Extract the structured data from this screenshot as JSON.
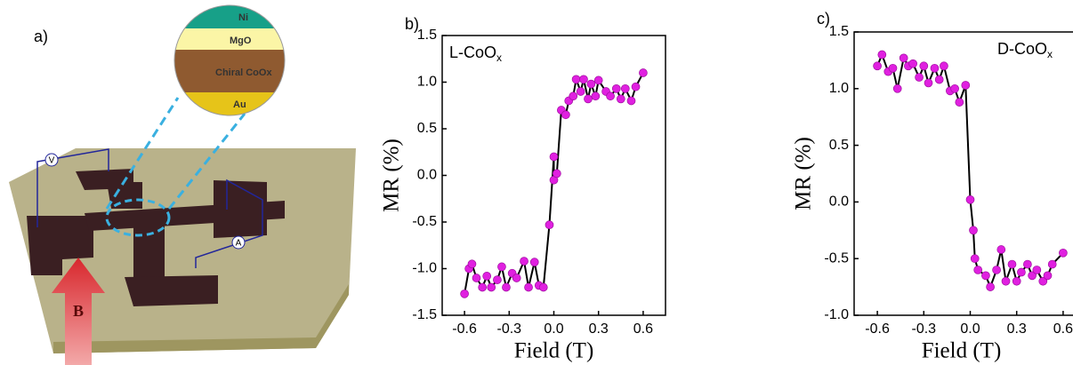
{
  "panel_a": {
    "label": "a)",
    "layers": [
      "Ni",
      "MgO",
      "Chiral CoOx",
      "Au"
    ],
    "voltmeter": "V",
    "ammeter": "A",
    "field": "B"
  },
  "chart_data": [
    {
      "type": "line",
      "panel_label": "b)",
      "annotation": "L-CoO",
      "annotation_sub": "x",
      "x_label": "Field (T)",
      "y_label": "MR (%)",
      "xlim": [
        -0.75,
        0.75
      ],
      "xticks": [
        -0.6,
        -0.3,
        {
          "value": 0,
          "label": "0.0"
        },
        0.3,
        0.6
      ],
      "ylim": [
        -1.5,
        1.5
      ],
      "yticks": [
        -1.5,
        {
          "value": -1,
          "label": "-1.0"
        },
        -0.5,
        {
          "value": 0,
          "label": "0.0"
        },
        0.5,
        {
          "value": 1,
          "label": "1.0"
        },
        1.5
      ],
      "line_color": "#000000",
      "x": [
        -0.6,
        -0.57,
        -0.55,
        -0.52,
        -0.48,
        -0.45,
        -0.42,
        -0.38,
        -0.35,
        -0.32,
        -0.28,
        -0.25,
        -0.2,
        -0.17,
        -0.13,
        -0.1,
        -0.07,
        -0.03,
        0.0,
        0.0,
        0.02,
        0.05,
        0.08,
        0.1,
        0.13,
        0.15,
        0.18,
        0.2,
        0.23,
        0.25,
        0.28,
        0.3,
        0.35,
        0.38,
        0.42,
        0.45,
        0.48,
        0.52,
        0.55,
        0.6
      ],
      "series": [
        {
          "color": "#e020e0",
          "values": [
            -1.27,
            -1.0,
            -0.95,
            -1.1,
            -1.2,
            -1.08,
            -1.2,
            -1.12,
            -0.98,
            -1.2,
            -1.05,
            -1.1,
            -0.92,
            -1.2,
            -0.93,
            -1.18,
            -1.2,
            -0.53,
            0.2,
            -0.05,
            0.02,
            0.7,
            0.65,
            0.8,
            0.85,
            1.03,
            0.9,
            1.03,
            0.82,
            0.98,
            0.85,
            1.02,
            0.9,
            0.85,
            0.93,
            0.82,
            0.93,
            0.8,
            0.95,
            1.1
          ]
        }
      ]
    },
    {
      "type": "line",
      "panel_label": "c)",
      "annotation": "D-CoO",
      "annotation_sub": "x",
      "x_label": "Field (T)",
      "y_label": "MR (%)",
      "xlim": [
        -0.75,
        0.75
      ],
      "xticks": [
        -0.6,
        -0.3,
        {
          "value": 0,
          "label": "0.0"
        },
        0.3,
        0.6
      ],
      "ylim": [
        -1,
        1.5
      ],
      "yticks": [
        {
          "value": -1,
          "label": "-1.0"
        },
        -0.5,
        {
          "value": 0,
          "label": "0.0"
        },
        0.5,
        {
          "value": 1,
          "label": "1.0"
        },
        1.5
      ],
      "line_color": "#000000",
      "x": [
        -0.6,
        -0.57,
        -0.53,
        -0.5,
        -0.47,
        -0.43,
        -0.4,
        -0.37,
        -0.33,
        -0.3,
        -0.27,
        -0.23,
        -0.2,
        -0.17,
        -0.13,
        -0.1,
        -0.07,
        -0.03,
        0.0,
        0.02,
        0.03,
        0.05,
        0.1,
        0.13,
        0.17,
        0.2,
        0.23,
        0.27,
        0.3,
        0.33,
        0.37,
        0.4,
        0.43,
        0.47,
        0.5,
        0.53,
        0.6
      ],
      "series": [
        {
          "color": "#e020e0",
          "values": [
            1.2,
            1.3,
            1.15,
            1.18,
            1.0,
            1.27,
            1.2,
            1.22,
            1.1,
            1.2,
            1.05,
            1.18,
            1.08,
            1.2,
            0.98,
            1.0,
            0.88,
            1.03,
            0.02,
            -0.25,
            -0.5,
            -0.6,
            -0.65,
            -0.75,
            -0.6,
            -0.42,
            -0.7,
            -0.55,
            -0.7,
            -0.62,
            -0.55,
            -0.65,
            -0.6,
            -0.7,
            -0.65,
            -0.55,
            -0.45
          ]
        }
      ]
    }
  ]
}
